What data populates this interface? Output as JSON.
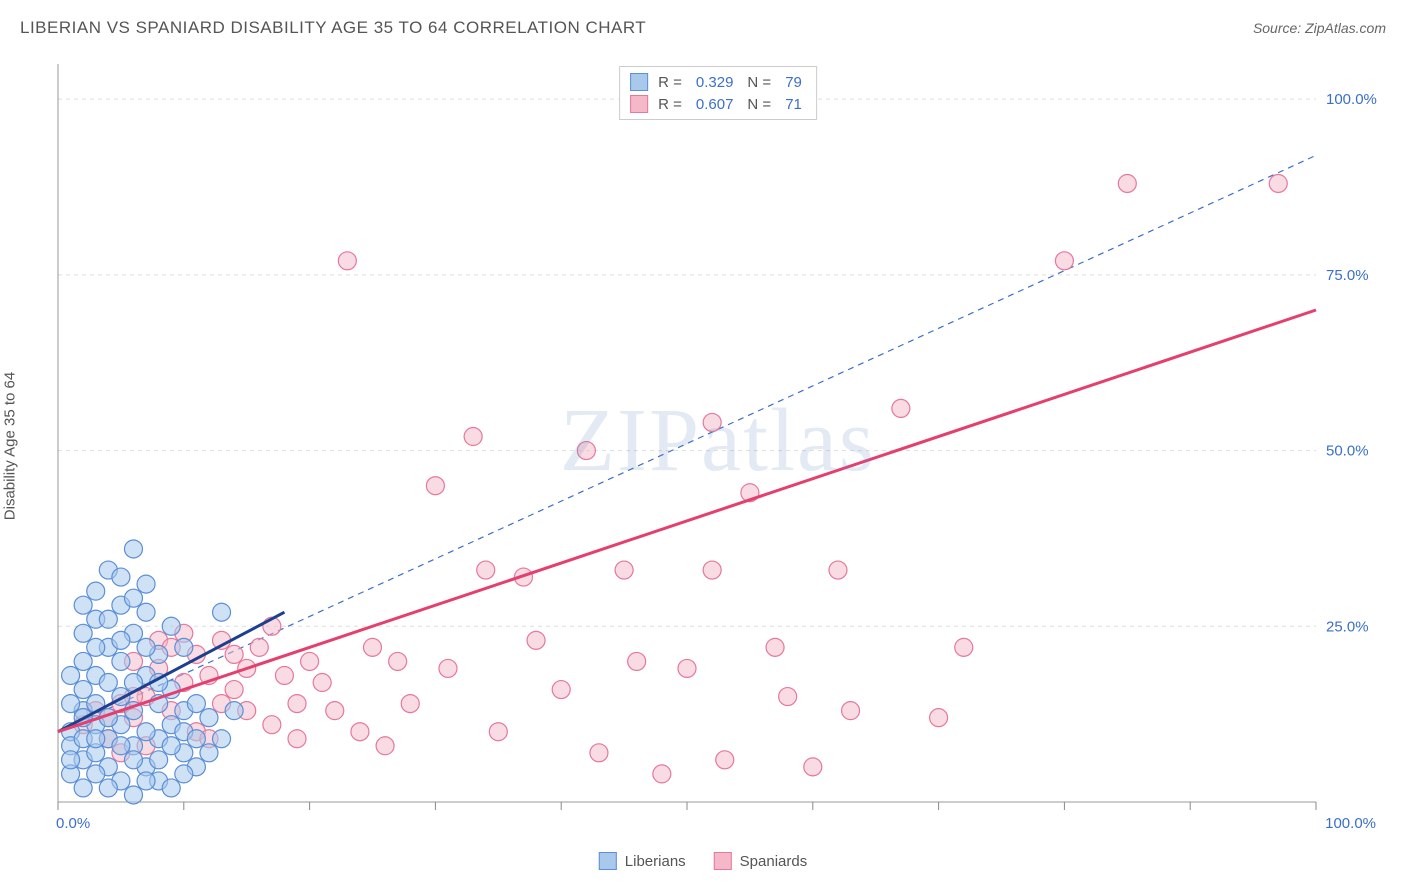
{
  "header": {
    "title": "LIBERIAN VS SPANIARD DISABILITY AGE 35 TO 64 CORRELATION CHART",
    "source_prefix": "Source: ",
    "source": "ZipAtlas.com"
  },
  "watermark": {
    "zip": "ZIP",
    "atlas": "atlas"
  },
  "chart": {
    "type": "scatter",
    "y_axis_label": "Disability Age 35 to 64",
    "xlim": [
      0,
      100
    ],
    "ylim": [
      0,
      105
    ],
    "x_ticks": [
      0,
      10,
      20,
      30,
      40,
      50,
      60,
      70,
      80,
      90,
      100
    ],
    "x_tick_labels": {
      "0": "0.0%",
      "100": "100.0%"
    },
    "y_grid": [
      25,
      50,
      75,
      100
    ],
    "y_tick_labels": {
      "25": "25.0%",
      "50": "50.0%",
      "75": "75.0%",
      "100": "100.0%"
    },
    "background_color": "#ffffff",
    "grid_color": "#dddddd",
    "axis_color": "#999999",
    "marker_radius": 9,
    "marker_stroke_width": 1.2,
    "series": {
      "liberians": {
        "label": "Liberians",
        "fill": "#a8c8ec",
        "fill_opacity": 0.55,
        "stroke": "#5b8fd6",
        "R": "0.329",
        "N": "79",
        "points": [
          [
            1,
            10
          ],
          [
            1,
            4
          ],
          [
            1,
            8
          ],
          [
            2,
            13
          ],
          [
            2,
            20
          ],
          [
            2,
            6
          ],
          [
            2,
            16
          ],
          [
            3,
            11
          ],
          [
            3,
            26
          ],
          [
            3,
            7
          ],
          [
            3,
            30
          ],
          [
            3,
            18
          ],
          [
            4,
            22
          ],
          [
            4,
            9
          ],
          [
            4,
            5
          ],
          [
            4,
            33
          ],
          [
            5,
            28
          ],
          [
            5,
            3
          ],
          [
            5,
            15
          ],
          [
            5,
            20
          ],
          [
            5,
            11
          ],
          [
            6,
            24
          ],
          [
            6,
            8
          ],
          [
            6,
            36
          ],
          [
            6,
            13
          ],
          [
            7,
            27
          ],
          [
            7,
            5
          ],
          [
            7,
            31
          ],
          [
            7,
            18
          ],
          [
            8,
            21
          ],
          [
            8,
            9
          ],
          [
            8,
            14
          ],
          [
            8,
            3
          ],
          [
            9,
            25
          ],
          [
            9,
            11
          ],
          [
            9,
            16
          ],
          [
            10,
            13
          ],
          [
            10,
            22
          ],
          [
            10,
            7
          ],
          [
            11,
            14
          ],
          [
            11,
            5
          ],
          [
            12,
            12
          ],
          [
            13,
            27
          ],
          [
            13,
            9
          ],
          [
            14,
            13
          ],
          [
            2,
            2
          ],
          [
            3,
            4
          ],
          [
            4,
            2
          ],
          [
            6,
            1
          ],
          [
            7,
            3
          ],
          [
            9,
            2
          ],
          [
            10,
            4
          ],
          [
            5,
            32
          ],
          [
            4,
            26
          ],
          [
            6,
            29
          ],
          [
            2,
            24
          ],
          [
            3,
            22
          ],
          [
            1,
            18
          ],
          [
            2,
            28
          ],
          [
            4,
            17
          ],
          [
            5,
            8
          ],
          [
            6,
            17
          ],
          [
            7,
            22
          ],
          [
            8,
            17
          ],
          [
            3,
            14
          ],
          [
            4,
            12
          ],
          [
            5,
            23
          ],
          [
            1,
            14
          ],
          [
            2,
            9
          ],
          [
            3,
            9
          ],
          [
            1,
            6
          ],
          [
            6,
            6
          ],
          [
            7,
            10
          ],
          [
            8,
            6
          ],
          [
            9,
            8
          ],
          [
            10,
            10
          ],
          [
            11,
            9
          ],
          [
            12,
            7
          ],
          [
            2,
            12
          ]
        ],
        "trend": {
          "x1": 0,
          "y1": 10,
          "x2": 18,
          "y2": 27,
          "stroke": "#1c3f8f",
          "width": 3,
          "dash": "none"
        }
      },
      "spaniards": {
        "label": "Spaniards",
        "fill": "#f4b8c8",
        "fill_opacity": 0.5,
        "stroke": "#e6789c",
        "R": "0.607",
        "N": "71",
        "points": [
          [
            2,
            11
          ],
          [
            3,
            13
          ],
          [
            4,
            12
          ],
          [
            5,
            14
          ],
          [
            6,
            12
          ],
          [
            7,
            15
          ],
          [
            8,
            19
          ],
          [
            9,
            13
          ],
          [
            10,
            17
          ],
          [
            11,
            21
          ],
          [
            12,
            18
          ],
          [
            13,
            23
          ],
          [
            14,
            16
          ],
          [
            15,
            13
          ],
          [
            16,
            22
          ],
          [
            17,
            11
          ],
          [
            18,
            18
          ],
          [
            19,
            9
          ],
          [
            20,
            20
          ],
          [
            22,
            13
          ],
          [
            23,
            77
          ],
          [
            24,
            10
          ],
          [
            25,
            22
          ],
          [
            27,
            20
          ],
          [
            28,
            14
          ],
          [
            30,
            45
          ],
          [
            31,
            19
          ],
          [
            33,
            52
          ],
          [
            34,
            33
          ],
          [
            35,
            10
          ],
          [
            37,
            32
          ],
          [
            38,
            23
          ],
          [
            40,
            16
          ],
          [
            42,
            50
          ],
          [
            43,
            7
          ],
          [
            45,
            33
          ],
          [
            46,
            20
          ],
          [
            48,
            4
          ],
          [
            50,
            19
          ],
          [
            52,
            54
          ],
          [
            52,
            33
          ],
          [
            53,
            6
          ],
          [
            55,
            44
          ],
          [
            57,
            22
          ],
          [
            58,
            15
          ],
          [
            60,
            5
          ],
          [
            62,
            33
          ],
          [
            63,
            13
          ],
          [
            67,
            56
          ],
          [
            70,
            12
          ],
          [
            72,
            22
          ],
          [
            80,
            77
          ],
          [
            85,
            88
          ],
          [
            97,
            88
          ],
          [
            6,
            20
          ],
          [
            8,
            23
          ],
          [
            10,
            24
          ],
          [
            4,
            9
          ],
          [
            5,
            7
          ],
          [
            11,
            10
          ],
          [
            13,
            14
          ],
          [
            15,
            19
          ],
          [
            9,
            22
          ],
          [
            7,
            8
          ],
          [
            17,
            25
          ],
          [
            19,
            14
          ],
          [
            21,
            17
          ],
          [
            6,
            15
          ],
          [
            12,
            9
          ],
          [
            14,
            21
          ],
          [
            26,
            8
          ]
        ],
        "trend": {
          "x1": 0,
          "y1": 10,
          "x2": 100,
          "y2": 70,
          "stroke": "#e43f6f",
          "width": 3,
          "dash": "none"
        },
        "ref_line": {
          "x1": 0,
          "y1": 10,
          "x2": 100,
          "y2": 92,
          "stroke": "#3b6fc9",
          "width": 1.2,
          "dash": "6 5"
        }
      }
    }
  },
  "legend_top": {
    "rows": [
      {
        "swatch_fill": "#a8c8ec",
        "swatch_stroke": "#5b8fd6",
        "r_label": "R =",
        "r_val": "0.329",
        "n_label": "N =",
        "n_val": "79"
      },
      {
        "swatch_fill": "#f4b8c8",
        "swatch_stroke": "#e6789c",
        "r_label": "R =",
        "r_val": "0.607",
        "n_label": "N =",
        "n_val": "71"
      }
    ]
  },
  "legend_bottom": {
    "items": [
      {
        "swatch_fill": "#a8c8ec",
        "swatch_stroke": "#5b8fd6",
        "label": "Liberians"
      },
      {
        "swatch_fill": "#f4b8c8",
        "swatch_stroke": "#e6789c",
        "label": "Spaniards"
      }
    ]
  }
}
